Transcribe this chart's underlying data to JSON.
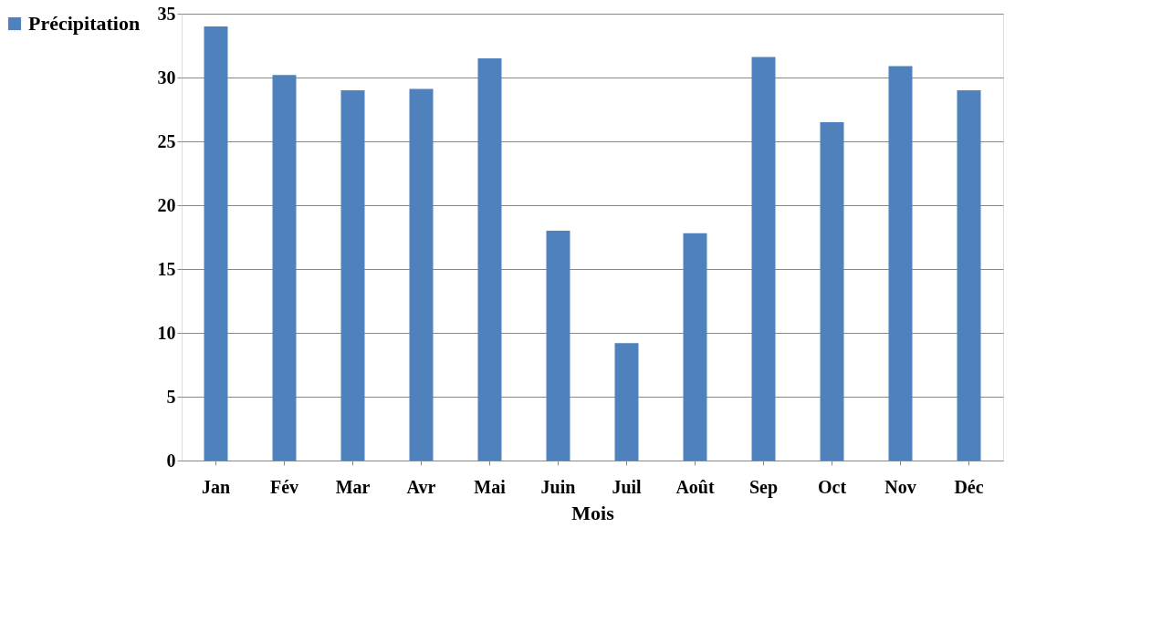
{
  "chart_data": {
    "type": "bar",
    "xlabel": "Mois",
    "categories": [
      "Jan",
      "Fév",
      "Mar",
      "Avr",
      "Mai",
      "Juin",
      "Juil",
      "Août",
      "Sep",
      "Oct",
      "Nov",
      "Déc"
    ],
    "series": [
      {
        "name": "Précipitation",
        "color": "#4f81bd",
        "values": [
          34,
          30.2,
          29,
          29.1,
          31.5,
          18,
          9.2,
          17.8,
          31.6,
          26.5,
          30.9,
          29
        ]
      }
    ],
    "ylim": [
      0,
      35
    ],
    "yticks": [
      0,
      5,
      10,
      15,
      20,
      25,
      30,
      35
    ],
    "grid": "y",
    "legend": "left"
  }
}
